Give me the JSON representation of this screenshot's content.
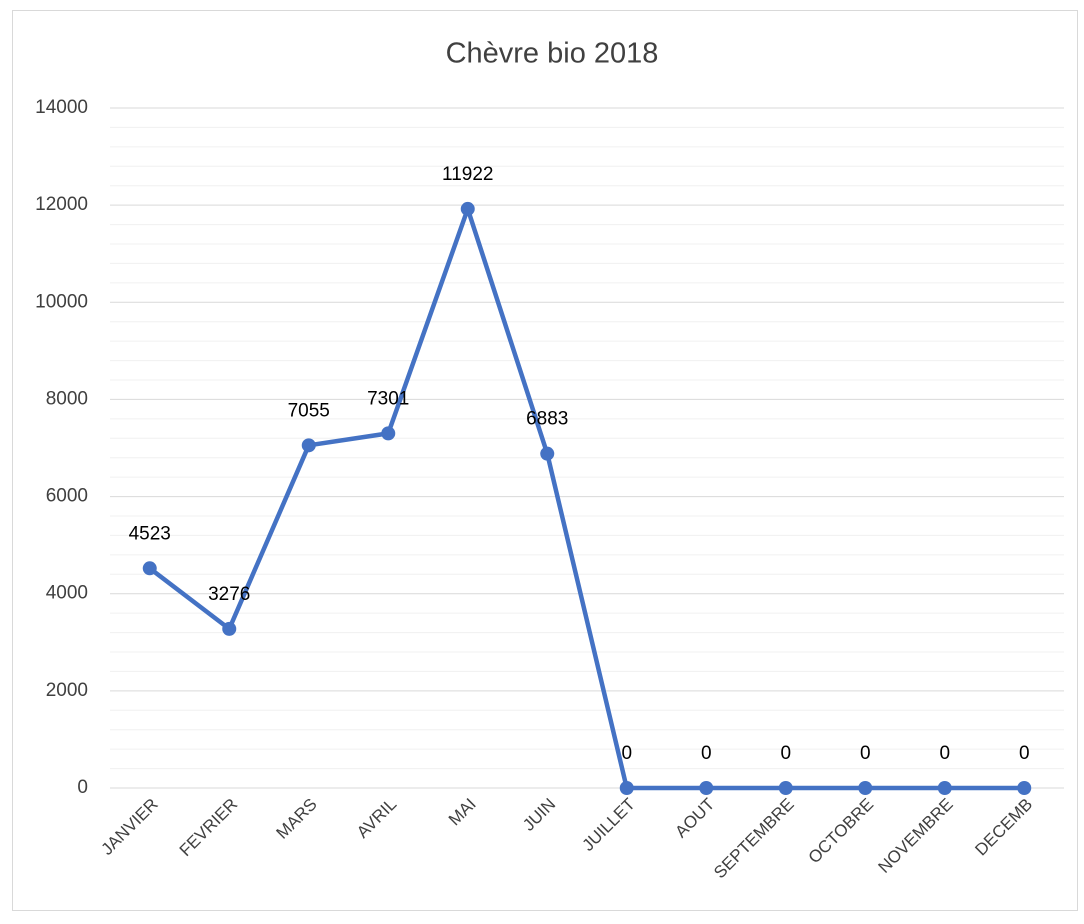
{
  "chart_data": {
    "type": "line",
    "title": "Chèvre bio 2018",
    "categories": [
      "JANVIER",
      "FEVRIER",
      "MARS",
      "AVRIL",
      "MAI",
      "JUIN",
      "JUILLET",
      "AOUT",
      "SEPTEMBRE",
      "OCTOBRE",
      "NOVEMBRE",
      "DECEMB"
    ],
    "values": [
      4523,
      3276,
      7055,
      7301,
      11922,
      6883,
      0,
      0,
      0,
      0,
      0,
      0
    ],
    "color": "#4472c4",
    "ylim": [
      0,
      14000
    ],
    "yticks": [
      0,
      2000,
      4000,
      6000,
      8000,
      10000,
      12000,
      14000
    ],
    "grid": true,
    "minor_grid": true,
    "data_labels": true
  }
}
